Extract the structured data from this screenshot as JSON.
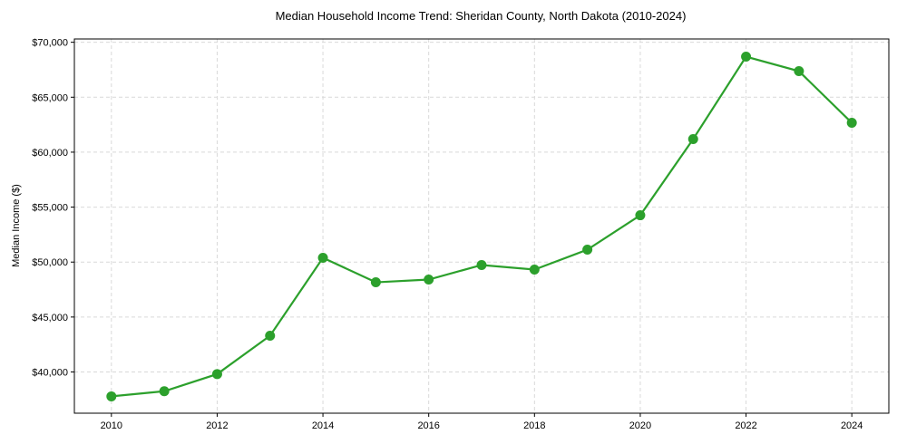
{
  "chart_data": {
    "type": "line",
    "title": "Median Household Income Trend: Sheridan County, North Dakota (2010-2024)",
    "xlabel": "",
    "ylabel": "Median Income ($)",
    "x": [
      2010,
      2011,
      2012,
      2013,
      2014,
      2015,
      2016,
      2017,
      2018,
      2019,
      2020,
      2021,
      2022,
      2023,
      2024
    ],
    "series": [
      {
        "name": "Median Income",
        "values": [
          37780,
          38250,
          39810,
          43300,
          50390,
          48160,
          48410,
          49730,
          49320,
          51130,
          54260,
          61190,
          68690,
          67370,
          62670
        ]
      }
    ],
    "xlim": [
      2009.3,
      2024.7
    ],
    "ylim": [
      36250,
      70300
    ],
    "xticks": [
      2010,
      2012,
      2014,
      2016,
      2018,
      2020,
      2022,
      2024
    ],
    "xtick_labels": [
      "2010",
      "2012",
      "2014",
      "2016",
      "2018",
      "2020",
      "2022",
      "2024"
    ],
    "yticks": [
      40000,
      45000,
      50000,
      55000,
      60000,
      65000,
      70000
    ],
    "ytick_labels": [
      "$40,000",
      "$45,000",
      "$50,000",
      "$55,000",
      "$60,000",
      "$65,000",
      "$70,000"
    ],
    "grid": true,
    "color": "#2ca02c"
  }
}
